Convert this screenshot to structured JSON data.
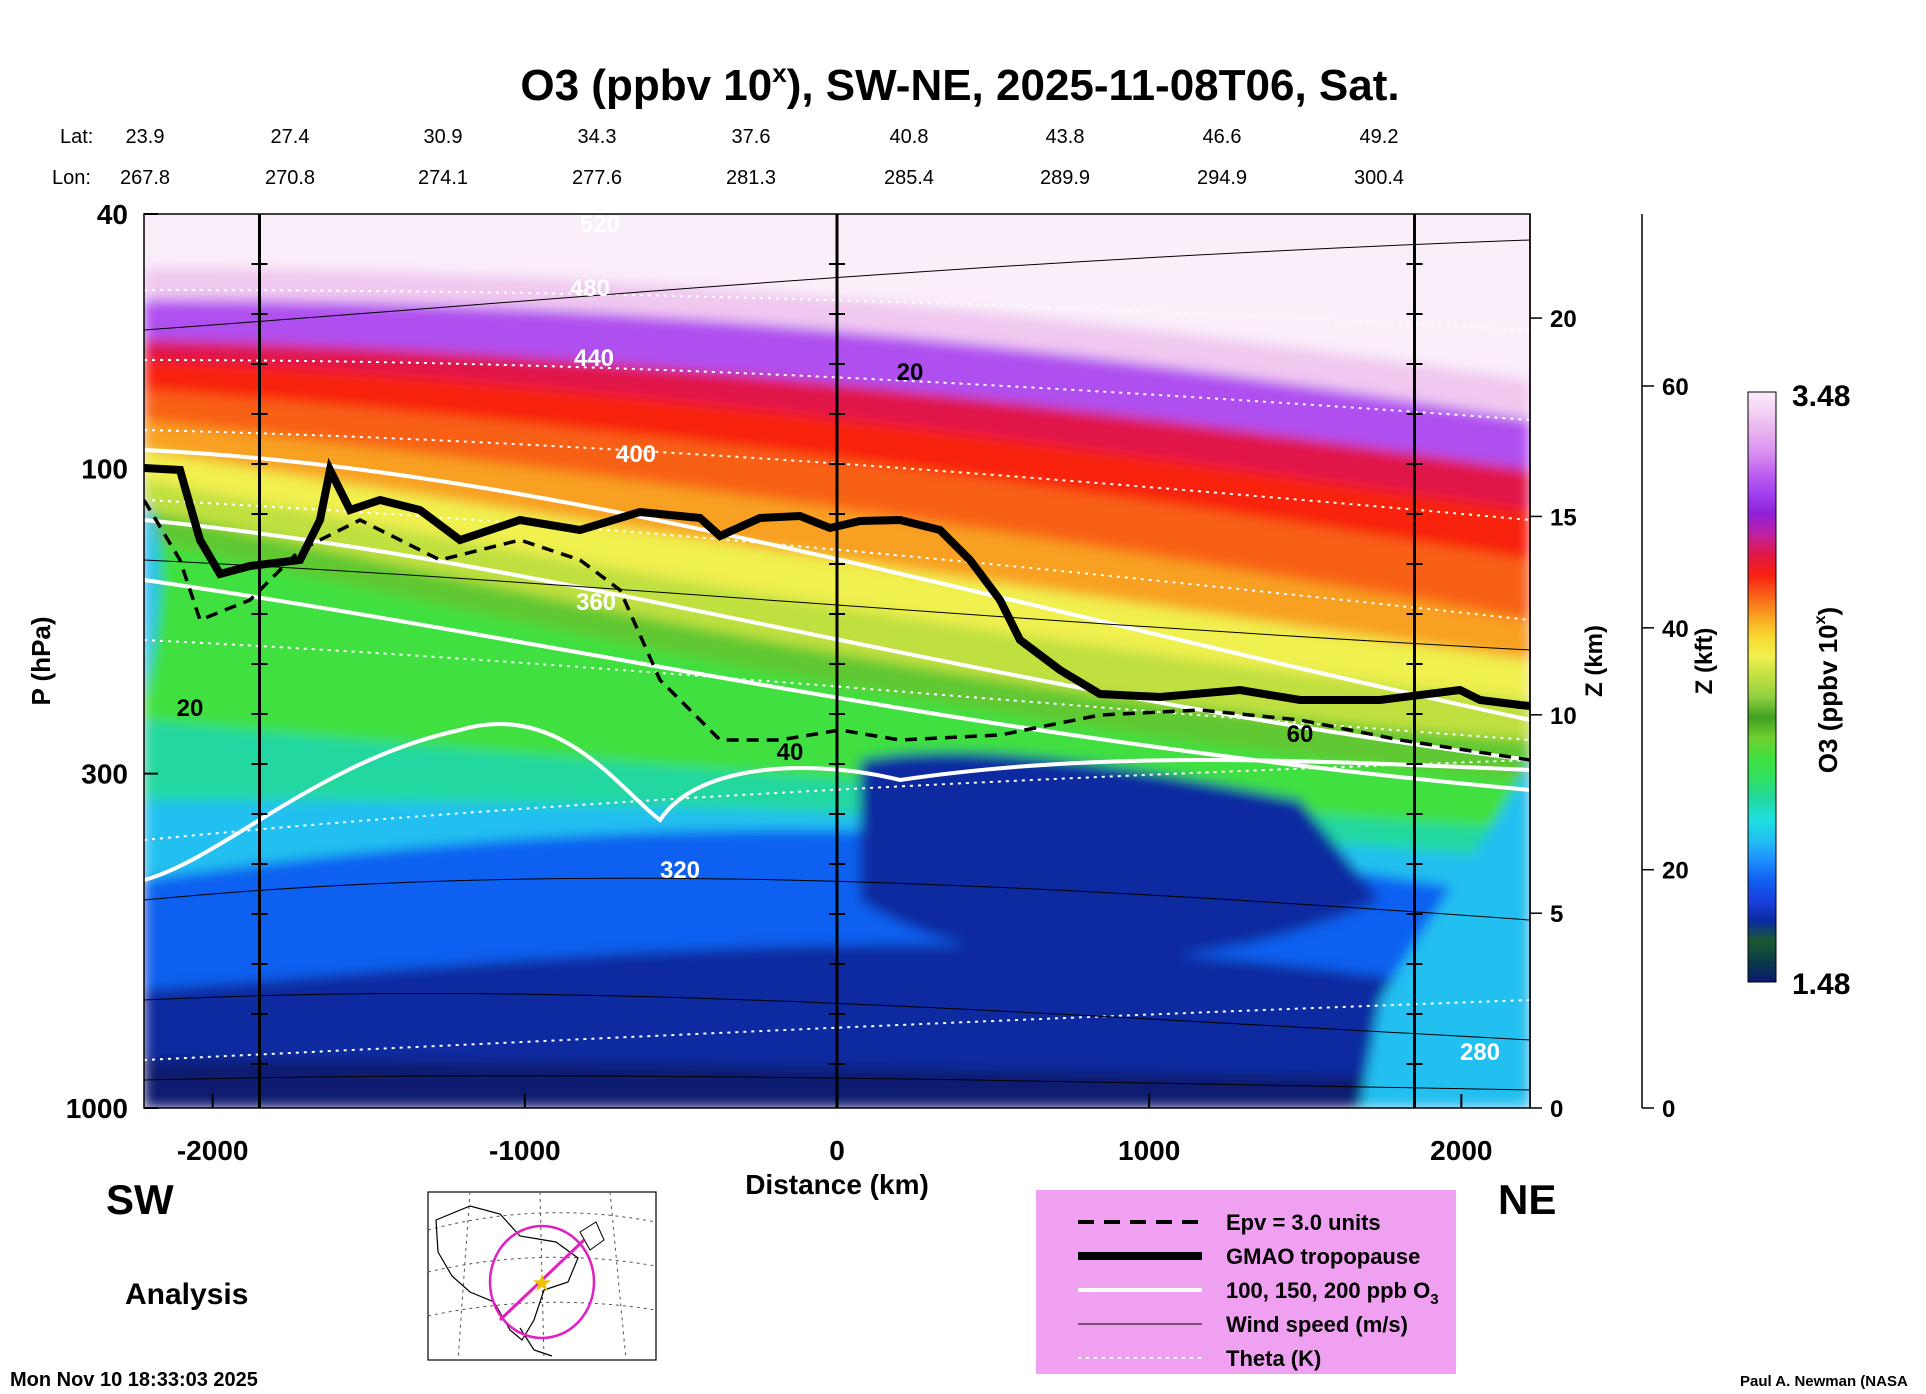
{
  "chart_data": {
    "type": "heatmap",
    "title": "O3 (ppbv 10",
    "title_superscript": "x",
    "title_suffix": "), SW-NE, 2025-11-08T06, Sat.",
    "lat_label": "Lat:",
    "lon_label": "Lon:",
    "lat_ticks": [
      "23.9",
      "27.4",
      "30.9",
      "34.3",
      "37.6",
      "40.8",
      "43.8",
      "46.6",
      "49.2"
    ],
    "lon_ticks": [
      "267.8",
      "270.8",
      "274.1",
      "277.6",
      "281.3",
      "285.4",
      "289.9",
      "294.9",
      "300.4"
    ],
    "xlabel": "Distance (km)",
    "x_range": [
      -2220,
      2220
    ],
    "x_ticks": [
      -2000,
      -1000,
      0,
      1000,
      2000
    ],
    "ylabel": "P (hPa)",
    "y_scale": "log",
    "y_range": [
      40,
      1000
    ],
    "y_ticks": [
      40,
      100,
      300,
      1000
    ],
    "z_km_label": "Z (km)",
    "z_km_ticks": [
      0,
      5,
      10,
      15,
      20
    ],
    "z_kft_label": "Z (kft)",
    "z_kft_ticks": [
      0,
      20,
      40,
      60
    ],
    "direction_left": "SW",
    "direction_right": "NE",
    "analysis_label": "Analysis",
    "colorbar": {
      "label": "O3 (ppbv 10",
      "label_superscript": "x",
      "label_suffix": ")",
      "max_label": "3.48",
      "min_label": "1.48",
      "colors": [
        "#0a1a70",
        "#0a3a48",
        "#1a5a30",
        "#0a2aa0",
        "#1a40e0",
        "#1060f0",
        "#1e90ff",
        "#20c0f0",
        "#20e0e0",
        "#20d8a0",
        "#30e060",
        "#40e040",
        "#70d030",
        "#40a020",
        "#90d040",
        "#c0e040",
        "#f0f050",
        "#f8d830",
        "#f8a020",
        "#f86018",
        "#f82010",
        "#e01848",
        "#c020a0",
        "#9020d8",
        "#a040f0",
        "#c060f0",
        "#d890f0",
        "#e8b0f0",
        "#f4d0f4",
        "#faeefa"
      ]
    },
    "theta_labels": [
      "520",
      "480",
      "440",
      "400",
      "360",
      "320",
      "280"
    ],
    "wind_labels": [
      "20",
      "40",
      "60"
    ],
    "legend": [
      {
        "style": "dashed",
        "label": "Epv = 3.0 units"
      },
      {
        "style": "thick",
        "label": "GMAO tropopause"
      },
      {
        "style": "white",
        "label": "100, 150, 200 ppb O"
      },
      {
        "style": "thin",
        "label": "Wind speed (m/s)"
      },
      {
        "style": "dotted",
        "label": "Theta (K)"
      }
    ],
    "legend_o3_subscript": "3",
    "legend_background": "#f0a0f0",
    "footer_timestamp": "Mon Nov 10 18:33:03 2025",
    "footer_credit": "Paul A. Newman (NASA"
  }
}
